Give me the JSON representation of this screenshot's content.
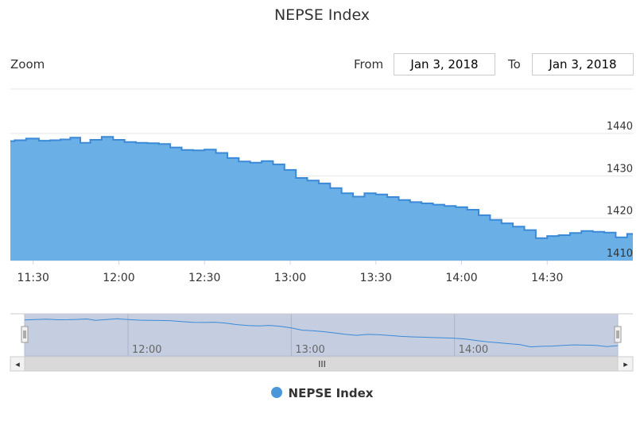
{
  "chart_data": {
    "type": "area",
    "title": "NEPSE Index",
    "date": "Jan 3, 2018",
    "x_tick_labels": [
      "11:30",
      "12:00",
      "12:30",
      "13:00",
      "13:30",
      "14:00",
      "14:30"
    ],
    "y_tick_labels": [
      "1410",
      "1420",
      "1430",
      "1440"
    ],
    "ylim": [
      1410,
      1440
    ],
    "grid": true,
    "legend_position": "bottom-center",
    "series": [
      {
        "name": "NEPSE Index",
        "color": "#4a98d9",
        "x": [
          "11:22",
          "11:25",
          "11:30",
          "11:34",
          "11:38",
          "11:41",
          "11:45",
          "11:48",
          "11:52",
          "11:56",
          "12:00",
          "12:04",
          "12:08",
          "12:12",
          "12:16",
          "12:20",
          "12:24",
          "12:28",
          "12:32",
          "12:36",
          "12:40",
          "12:44",
          "12:48",
          "12:52",
          "12:56",
          "13:00",
          "13:04",
          "13:08",
          "13:12",
          "13:16",
          "13:20",
          "13:24",
          "13:28",
          "13:32",
          "13:36",
          "13:40",
          "13:44",
          "13:48",
          "13:52",
          "13:56",
          "14:00",
          "14:04",
          "14:08",
          "14:12",
          "14:16",
          "14:20",
          "14:24",
          "14:28",
          "14:32",
          "14:36",
          "14:40",
          "14:44",
          "14:48",
          "14:52",
          "14:56",
          "15:00"
        ],
        "values": [
          1438.2,
          1438.4,
          1438.8,
          1438.3,
          1438.4,
          1438.6,
          1439.0,
          1437.8,
          1438.5,
          1439.2,
          1438.5,
          1438.0,
          1437.8,
          1437.7,
          1437.5,
          1436.7,
          1436.1,
          1436.0,
          1436.2,
          1435.4,
          1434.2,
          1433.4,
          1433.1,
          1433.5,
          1432.7,
          1431.4,
          1429.5,
          1428.9,
          1428.2,
          1427.1,
          1425.9,
          1425.1,
          1425.9,
          1425.6,
          1425.0,
          1424.3,
          1423.8,
          1423.5,
          1423.2,
          1422.9,
          1422.6,
          1422.0,
          1420.7,
          1419.6,
          1418.8,
          1418.0,
          1417.2,
          1415.3,
          1415.8,
          1416.0,
          1416.5,
          1417.0,
          1416.8,
          1416.6,
          1415.5,
          1416.3
        ]
      }
    ],
    "navigator": {
      "x_tick_labels": [
        "12:00",
        "13:00",
        "14:00"
      ],
      "scrollbar_grip": "III",
      "left_arrow": "◂",
      "right_arrow": "▸",
      "handle_glyph": "‖"
    }
  },
  "controls": {
    "zoom_label": "Zoom",
    "from_label": "From",
    "from_value": "Jan 3, 2018",
    "to_label": "To",
    "to_value": "Jan 3, 2018"
  },
  "legend": {
    "label": "NEPSE Index"
  },
  "colors": {
    "series_line": "#3a8ad8",
    "series_fill": "#6aafe6",
    "navigator_mask": "#c5cde0",
    "scrollbar": "#d9d9d9"
  }
}
